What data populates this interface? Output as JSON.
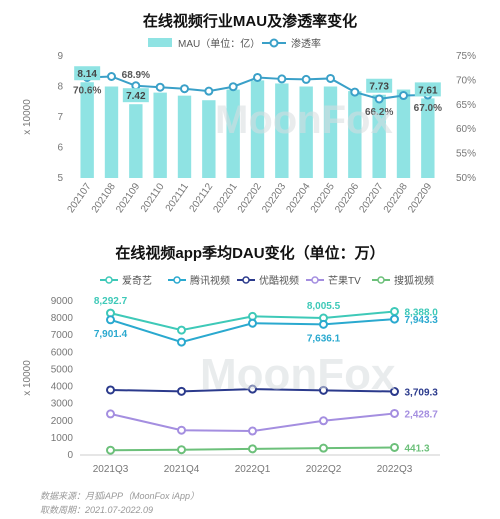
{
  "charts": [
    {
      "title": "在线视频行业MAU及渗透率变化",
      "legend": [
        "MAU（单位：亿）",
        "渗透率"
      ],
      "y_unit_label": "x 10000",
      "watermark": "MoonFox"
    },
    {
      "title": "在线视频app季均DAU变化（单位：万）",
      "y_unit_label": "x 10000",
      "watermark": "MoonFox"
    }
  ],
  "footer": {
    "source": "数据来源：月狐iAPP（MoonFox iApp）",
    "period": "取数周期：2021.07-2022.09"
  },
  "colors": {
    "bar": "#8fe3e3",
    "line": "#3aa0c8",
    "aiqiyi": "#3ec9b8",
    "tengxun": "#2aa9cf",
    "youku": "#2b3a8c",
    "mangguo": "#a48ee0",
    "souhu": "#6cc07a"
  },
  "chart_data": [
    {
      "type": "bar",
      "categories": [
        "202107",
        "202108",
        "202109",
        "202110",
        "202111",
        "202112",
        "202201",
        "202202",
        "202203",
        "202204",
        "202205",
        "202206",
        "202207",
        "202208",
        "202209"
      ],
      "series": [
        {
          "name": "MAU（单位：亿）",
          "type": "bar",
          "axis": "left",
          "values": [
            8.14,
            8.0,
            7.42,
            7.8,
            7.7,
            7.55,
            7.9,
            8.2,
            8.1,
            8.0,
            8.0,
            7.85,
            7.73,
            7.9,
            7.61
          ]
        },
        {
          "name": "渗透率",
          "type": "line",
          "axis": "right",
          "unit": "%",
          "values": [
            70.6,
            70.8,
            68.9,
            68.6,
            68.3,
            67.8,
            68.7,
            70.6,
            70.3,
            70.2,
            70.4,
            67.6,
            66.2,
            66.9,
            67.0
          ]
        }
      ],
      "labels": [
        {
          "series": "MAU（单位：亿）",
          "index": 0,
          "text": "8.14",
          "boxed": true
        },
        {
          "series": "MAU（单位：亿）",
          "index": 2,
          "text": "7.42",
          "boxed": true
        },
        {
          "series": "MAU（单位：亿）",
          "index": 12,
          "text": "7.73",
          "boxed": true
        },
        {
          "series": "MAU（单位：亿）",
          "index": 14,
          "text": "7.61",
          "boxed": true
        },
        {
          "series": "渗透率",
          "index": 0,
          "text": "70.6%"
        },
        {
          "series": "渗透率",
          "index": 2,
          "text": "68.9%"
        },
        {
          "series": "渗透率",
          "index": 12,
          "text": "66.2%"
        },
        {
          "series": "渗透率",
          "index": 14,
          "text": "67.0%"
        }
      ],
      "ylim": [
        5,
        9
      ],
      "yticks": [
        5,
        6,
        7,
        8,
        9
      ],
      "y2lim": [
        50,
        75
      ],
      "y2ticks": [
        "50%",
        "55%",
        "60%",
        "65%",
        "70%",
        "75%"
      ],
      "legend_position": "top"
    },
    {
      "type": "line",
      "categories": [
        "2021Q3",
        "2021Q4",
        "2022Q1",
        "2022Q2",
        "2022Q3"
      ],
      "series": [
        {
          "name": "爱奇艺",
          "values": [
            8292.7,
            7300,
            8100,
            8005.5,
            8388.0
          ]
        },
        {
          "name": "腾讯视频",
          "values": [
            7901.4,
            6600,
            7700,
            7636.1,
            7943.3
          ]
        },
        {
          "name": "优酷视频",
          "values": [
            3800,
            3720,
            3850,
            3780,
            3709.3
          ]
        },
        {
          "name": "芒果TV",
          "values": [
            2400,
            1450,
            1400,
            2000,
            2428.7
          ]
        },
        {
          "name": "搜狐视频",
          "values": [
            280,
            310,
            360,
            400,
            441.3
          ]
        }
      ],
      "labels": [
        {
          "series": "爱奇艺",
          "index": 0,
          "text": "8,292.7",
          "pos": "above"
        },
        {
          "series": "爱奇艺",
          "index": 3,
          "text": "8,005.5",
          "pos": "above"
        },
        {
          "series": "爱奇艺",
          "index": 4,
          "text": "8,388.0",
          "pos": "right"
        },
        {
          "series": "腾讯视频",
          "index": 0,
          "text": "7,901.4",
          "pos": "below"
        },
        {
          "series": "腾讯视频",
          "index": 3,
          "text": "7,636.1",
          "pos": "below"
        },
        {
          "series": "腾讯视频",
          "index": 4,
          "text": "7,943.3",
          "pos": "right"
        },
        {
          "series": "优酷视频",
          "index": 4,
          "text": "3,709.3",
          "pos": "right"
        },
        {
          "series": "芒果TV",
          "index": 4,
          "text": "2,428.7",
          "pos": "right"
        },
        {
          "series": "搜狐视频",
          "index": 4,
          "text": "441.3",
          "pos": "right"
        }
      ],
      "ylim": [
        0,
        9000
      ],
      "yticks": [
        "0",
        "1000",
        "2000",
        "3000",
        "4000",
        "5000",
        "6000",
        "7000",
        "8000",
        "9000"
      ],
      "legend_position": "top"
    }
  ]
}
